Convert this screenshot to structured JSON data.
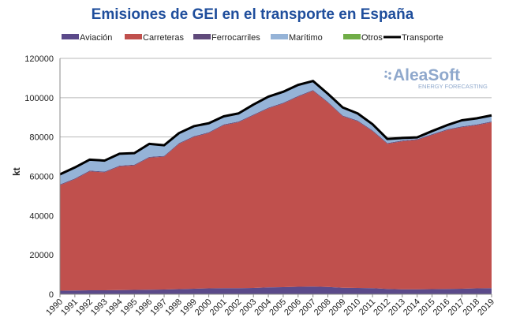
{
  "chart_data": {
    "type": "area",
    "stacked": true,
    "title": "Emisiones de GEI en el transporte en España",
    "xlabel": "",
    "ylabel": "kt",
    "ylim": [
      0,
      120000
    ],
    "yticks": [
      "0",
      "20000",
      "40000",
      "60000",
      "80000",
      "100000",
      "120000"
    ],
    "grid": true,
    "legend_position": "top",
    "categories": [
      "1990",
      "1991",
      "1992",
      "1993",
      "1994",
      "1995",
      "1996",
      "1997",
      "1998",
      "1999",
      "2000",
      "2001",
      "2002",
      "2003",
      "2004",
      "2005",
      "2006",
      "2007",
      "2008",
      "2009",
      "2010",
      "2011",
      "2012",
      "2013",
      "2014",
      "2015",
      "2016",
      "2017",
      "2018",
      "2019"
    ],
    "series": [
      {
        "name": "Aviación",
        "color": "#5b4a8a",
        "values": [
          1800,
          1900,
          2000,
          2000,
          2100,
          2200,
          2300,
          2400,
          2600,
          2800,
          3000,
          3100,
          3100,
          3200,
          3500,
          3600,
          3800,
          3900,
          3700,
          3300,
          3200,
          3100,
          2700,
          2500,
          2500,
          2600,
          2700,
          2800,
          3000,
          3100
        ]
      },
      {
        "name": "Carreteras",
        "color": "#c0504d",
        "values": [
          53700,
          56600,
          60500,
          60000,
          62900,
          63300,
          67200,
          67600,
          73900,
          77200,
          79000,
          82900,
          84400,
          87800,
          91000,
          93400,
          96700,
          99600,
          93800,
          87200,
          84800,
          79900,
          73800,
          75300,
          76000,
          78400,
          80800,
          82200,
          83000,
          84400
        ]
      },
      {
        "name": "Ferrocarriles",
        "color": "#604a7b",
        "values": [
          400,
          400,
          400,
          400,
          400,
          400,
          400,
          400,
          400,
          400,
          400,
          400,
          400,
          400,
          400,
          400,
          400,
          400,
          400,
          400,
          400,
          400,
          400,
          400,
          400,
          400,
          400,
          400,
          400,
          400
        ]
      },
      {
        "name": "Marítimo",
        "color": "#95b3d7",
        "values": [
          5000,
          5500,
          5500,
          5500,
          6000,
          5800,
          6500,
          5300,
          5000,
          5000,
          4500,
          4000,
          4000,
          5000,
          5500,
          5500,
          5500,
          4500,
          4000,
          4000,
          3500,
          3000,
          2000,
          1200,
          800,
          1500,
          2000,
          3000,
          3000,
          3000
        ]
      },
      {
        "name": "Otros",
        "color": "#70ad47",
        "values": [
          100,
          100,
          100,
          100,
          100,
          100,
          100,
          100,
          100,
          100,
          100,
          100,
          100,
          100,
          100,
          100,
          100,
          100,
          100,
          100,
          100,
          100,
          100,
          100,
          100,
          100,
          100,
          100,
          100,
          100
        ]
      }
    ],
    "line": {
      "name": "Transporte",
      "color": "#000000",
      "values": [
        61000,
        64500,
        68500,
        68000,
        71500,
        71800,
        76500,
        75800,
        82000,
        85500,
        87000,
        90500,
        92000,
        96500,
        100500,
        103000,
        106500,
        108500,
        102000,
        95000,
        92000,
        86500,
        79000,
        79500,
        79800,
        83000,
        86000,
        88500,
        89500,
        91000
      ]
    }
  },
  "logo": {
    "name": "AleaSoft",
    "tagline": "ENERGY FORECASTING"
  }
}
